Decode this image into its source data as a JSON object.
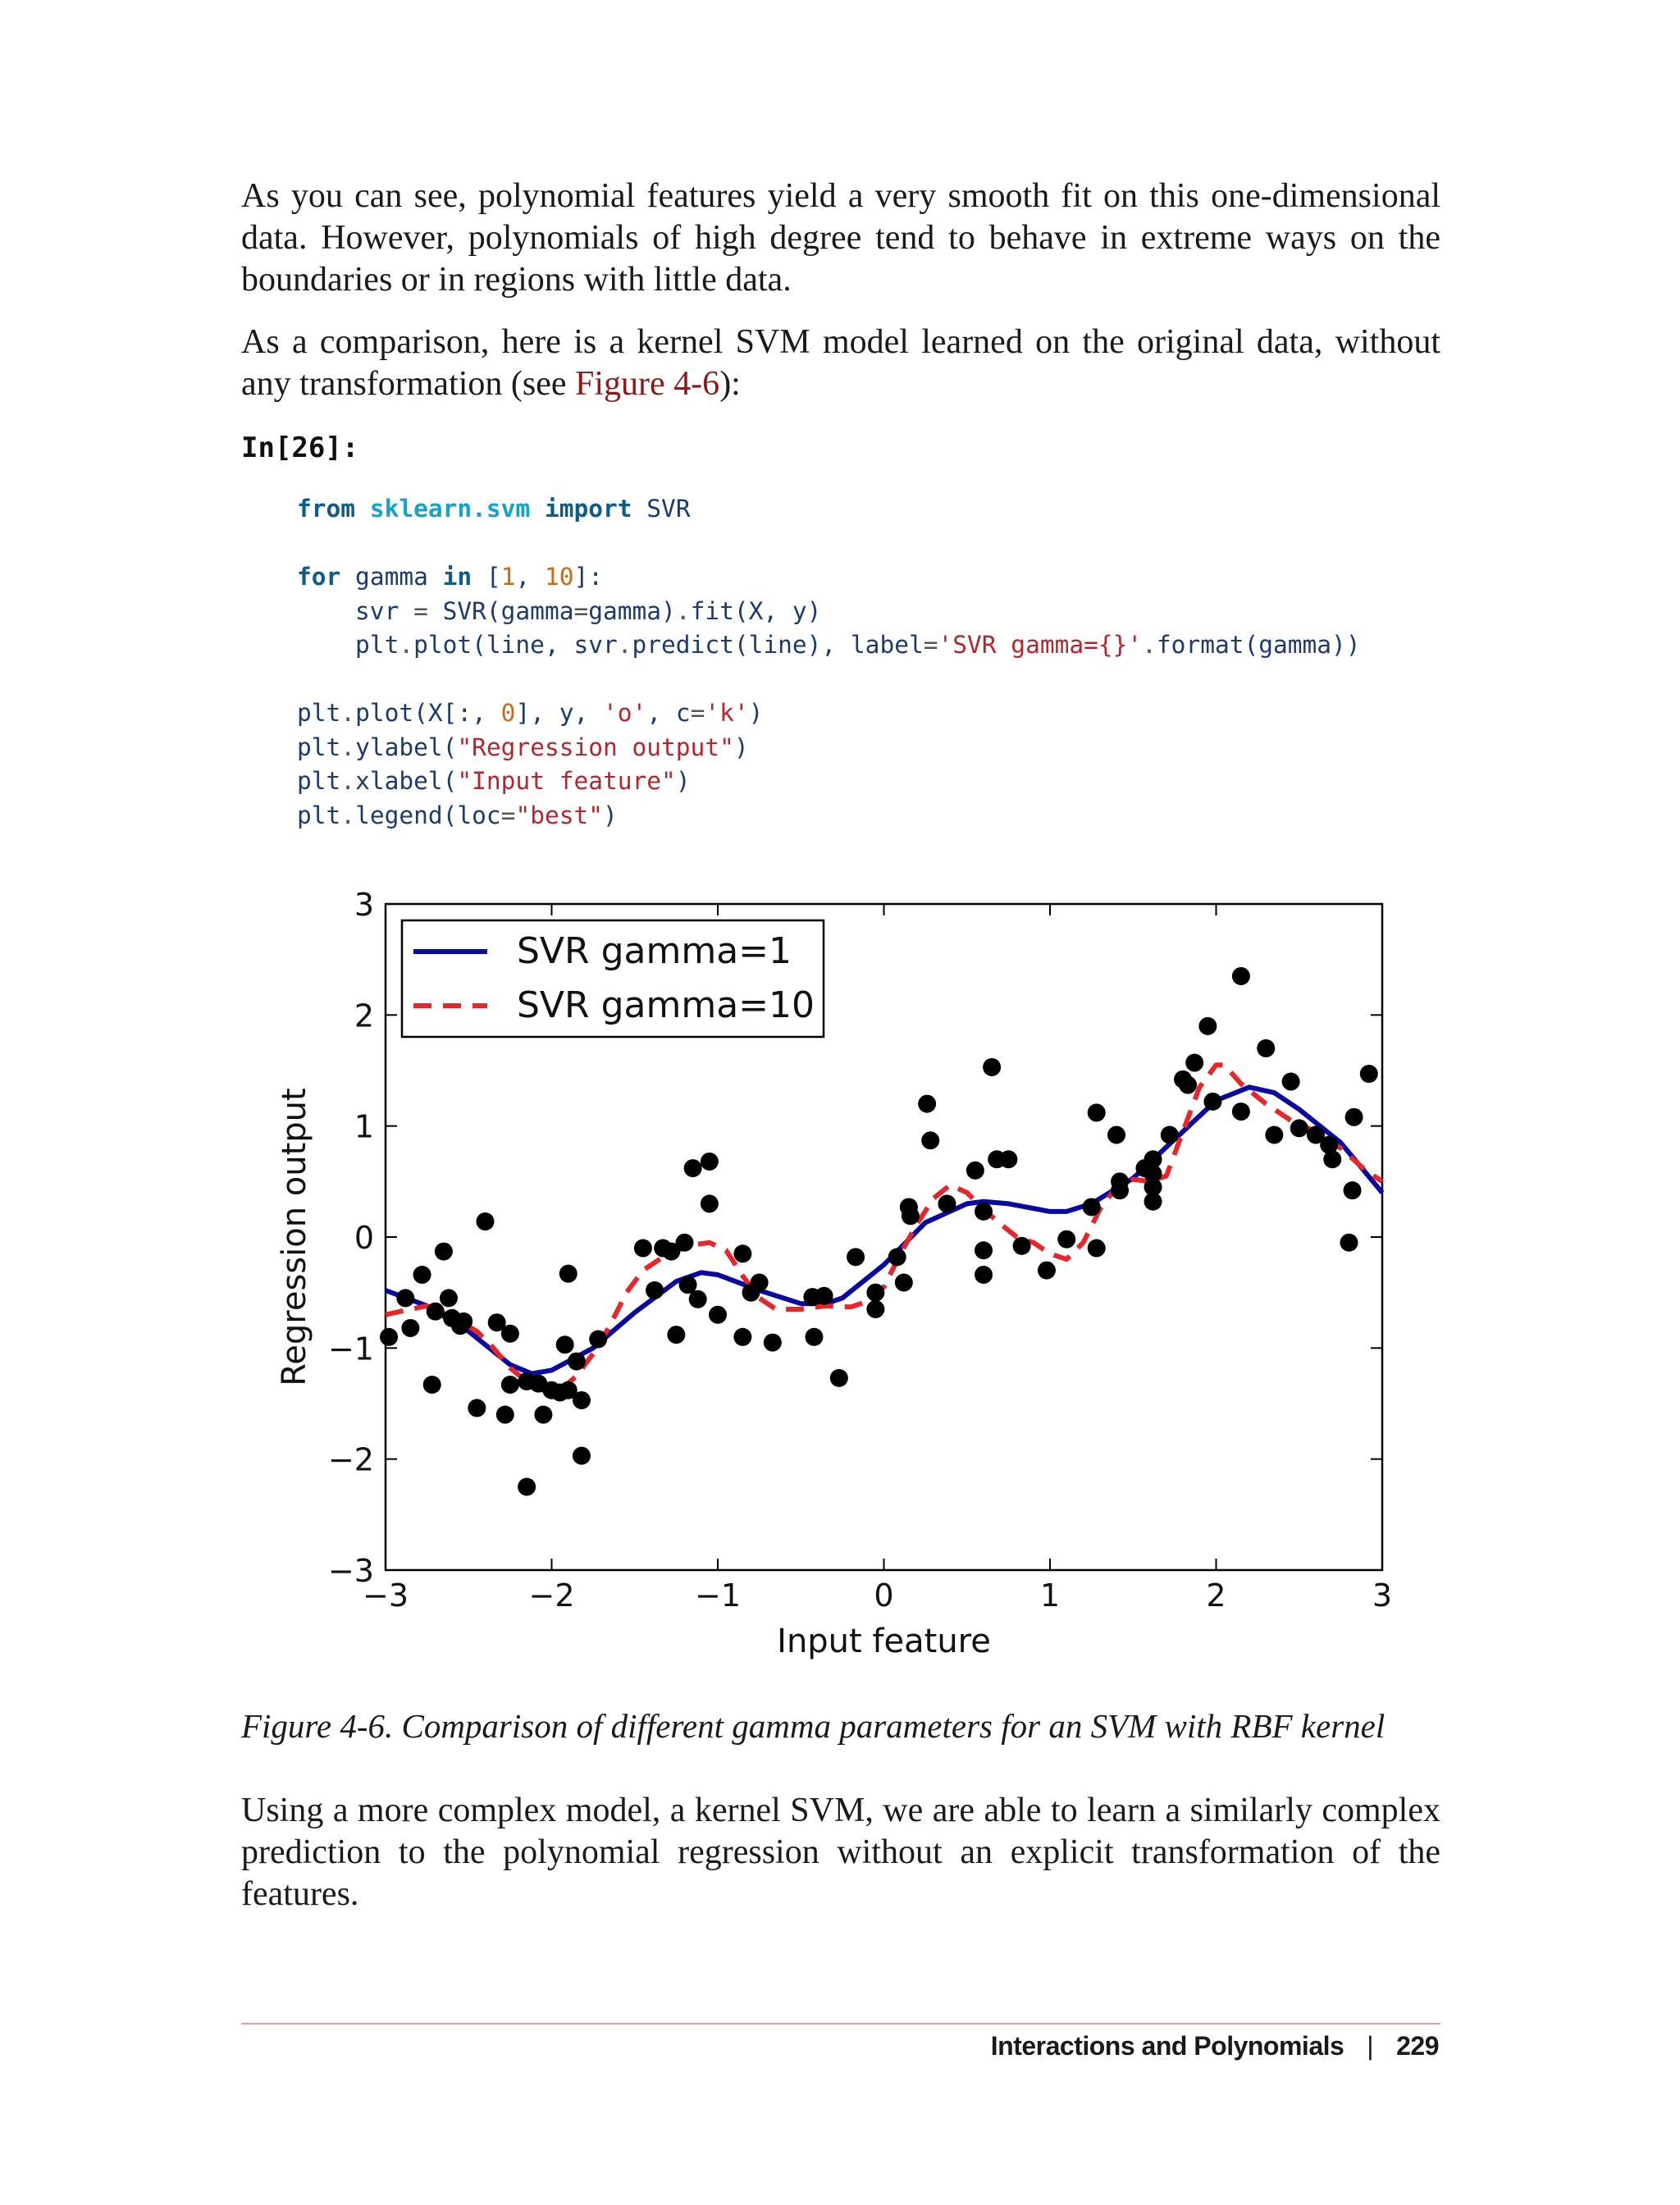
{
  "paragraphs": {
    "p1_main": "As you can see, polynomial features yield a very smooth fit on this one-dimensional data. However, polynomials of high degree tend to behave in extreme ways on the",
    "p1_last": "boundaries or in regions with little data.",
    "p2_main": "As a comparison, here is a kernel SVM model learned on the original data, without",
    "p2_last_prefix": "any transformation (see ",
    "p2_link": "Figure 4-6",
    "p2_last_suffix": "):",
    "p3_main": "Using a more complex model, a kernel SVM, we are able to learn a similarly complex prediction to the polynomial regression without an explicit transformation of the",
    "p3_last": "features."
  },
  "code_cell": {
    "label": "In[26]:",
    "lines": [
      [
        {
          "t": "from",
          "c": "kw"
        },
        {
          "t": " "
        },
        {
          "t": "sklearn.svm",
          "c": "mod"
        },
        {
          "t": " "
        },
        {
          "t": "import",
          "c": "kw"
        },
        {
          "t": " SVR"
        }
      ],
      [],
      [
        {
          "t": "for",
          "c": "kw"
        },
        {
          "t": " gamma "
        },
        {
          "t": "in",
          "c": "kw"
        },
        {
          "t": " ["
        },
        {
          "t": "1",
          "c": "num"
        },
        {
          "t": ", "
        },
        {
          "t": "10",
          "c": "num"
        },
        {
          "t": "]:"
        }
      ],
      [
        {
          "t": "    svr "
        },
        {
          "t": "=",
          "c": "op"
        },
        {
          "t": " SVR(gamma"
        },
        {
          "t": "=",
          "c": "op"
        },
        {
          "t": "gamma)"
        },
        {
          "t": ".",
          "c": "op"
        },
        {
          "t": "fit(X, y)"
        }
      ],
      [
        {
          "t": "    plt"
        },
        {
          "t": ".",
          "c": "op"
        },
        {
          "t": "plot(line, svr"
        },
        {
          "t": ".",
          "c": "op"
        },
        {
          "t": "predict(line), label"
        },
        {
          "t": "=",
          "c": "op"
        },
        {
          "t": "'SVR gamma={}'",
          "c": "str"
        },
        {
          "t": ".",
          "c": "op"
        },
        {
          "t": "format(gamma))"
        }
      ],
      [],
      [
        {
          "t": "plt"
        },
        {
          "t": ".",
          "c": "op"
        },
        {
          "t": "plot(X[:, "
        },
        {
          "t": "0",
          "c": "num"
        },
        {
          "t": "], y, "
        },
        {
          "t": "'o'",
          "c": "str"
        },
        {
          "t": ", c"
        },
        {
          "t": "=",
          "c": "op"
        },
        {
          "t": "'k'",
          "c": "str"
        },
        {
          "t": ")"
        }
      ],
      [
        {
          "t": "plt"
        },
        {
          "t": ".",
          "c": "op"
        },
        {
          "t": "ylabel("
        },
        {
          "t": "\"Regression output\"",
          "c": "str"
        },
        {
          "t": ")"
        }
      ],
      [
        {
          "t": "plt"
        },
        {
          "t": ".",
          "c": "op"
        },
        {
          "t": "xlabel("
        },
        {
          "t": "\"Input feature\"",
          "c": "str"
        },
        {
          "t": ")"
        }
      ],
      [
        {
          "t": "plt"
        },
        {
          "t": ".",
          "c": "op"
        },
        {
          "t": "legend(loc"
        },
        {
          "t": "=",
          "c": "op"
        },
        {
          "t": "\"best\"",
          "c": "str"
        },
        {
          "t": ")"
        }
      ]
    ]
  },
  "chart_data": {
    "type": "line",
    "xlabel": "Input feature",
    "ylabel": "Regression output",
    "xlim": [
      -3,
      3
    ],
    "ylim": [
      -3,
      3
    ],
    "x_ticks": [
      -3,
      -2,
      -1,
      0,
      1,
      2,
      3
    ],
    "y_ticks": [
      -3,
      -2,
      -1,
      0,
      1,
      2,
      3
    ],
    "x_tick_labels": [
      "−3",
      "−2",
      "−1",
      "0",
      "1",
      "2",
      "3"
    ],
    "y_tick_labels": [
      "−3",
      "−2",
      "−1",
      "0",
      "1",
      "2",
      "3"
    ],
    "grid": false,
    "legend_position": "top-left",
    "series": [
      {
        "name": "SVR gamma=1",
        "style": "solid",
        "color": "#0a0aa0",
        "points": [
          [
            -3.0,
            -0.48
          ],
          [
            -2.75,
            -0.62
          ],
          [
            -2.5,
            -0.85
          ],
          [
            -2.25,
            -1.15
          ],
          [
            -2.12,
            -1.23
          ],
          [
            -2.0,
            -1.2
          ],
          [
            -1.75,
            -1.0
          ],
          [
            -1.5,
            -0.68
          ],
          [
            -1.25,
            -0.4
          ],
          [
            -1.1,
            -0.32
          ],
          [
            -1.0,
            -0.34
          ],
          [
            -0.75,
            -0.48
          ],
          [
            -0.5,
            -0.6
          ],
          [
            -0.35,
            -0.6
          ],
          [
            -0.25,
            -0.55
          ],
          [
            0.0,
            -0.25
          ],
          [
            0.25,
            0.13
          ],
          [
            0.5,
            0.3
          ],
          [
            0.6,
            0.32
          ],
          [
            0.75,
            0.3
          ],
          [
            1.0,
            0.23
          ],
          [
            1.1,
            0.23
          ],
          [
            1.25,
            0.3
          ],
          [
            1.5,
            0.53
          ],
          [
            1.75,
            0.88
          ],
          [
            2.0,
            1.23
          ],
          [
            2.2,
            1.35
          ],
          [
            2.35,
            1.3
          ],
          [
            2.5,
            1.15
          ],
          [
            2.75,
            0.85
          ],
          [
            3.0,
            0.4
          ]
        ]
      },
      {
        "name": "SVR gamma=10",
        "style": "dashed",
        "color": "#e8262a",
        "points": [
          [
            -3.0,
            -0.7
          ],
          [
            -2.85,
            -0.65
          ],
          [
            -2.75,
            -0.62
          ],
          [
            -2.6,
            -0.72
          ],
          [
            -2.45,
            -0.85
          ],
          [
            -2.35,
            -1.0
          ],
          [
            -2.25,
            -1.18
          ],
          [
            -2.15,
            -1.3
          ],
          [
            -2.05,
            -1.38
          ],
          [
            -1.95,
            -1.38
          ],
          [
            -1.85,
            -1.25
          ],
          [
            -1.75,
            -1.05
          ],
          [
            -1.65,
            -0.8
          ],
          [
            -1.55,
            -0.5
          ],
          [
            -1.45,
            -0.3
          ],
          [
            -1.3,
            -0.15
          ],
          [
            -1.15,
            -0.07
          ],
          [
            -1.05,
            -0.05
          ],
          [
            -0.95,
            -0.12
          ],
          [
            -0.85,
            -0.35
          ],
          [
            -0.75,
            -0.55
          ],
          [
            -0.65,
            -0.65
          ],
          [
            -0.5,
            -0.65
          ],
          [
            -0.35,
            -0.62
          ],
          [
            -0.2,
            -0.63
          ],
          [
            -0.1,
            -0.58
          ],
          [
            0.0,
            -0.45
          ],
          [
            0.1,
            -0.15
          ],
          [
            0.2,
            0.12
          ],
          [
            0.3,
            0.35
          ],
          [
            0.4,
            0.47
          ],
          [
            0.5,
            0.4
          ],
          [
            0.6,
            0.25
          ],
          [
            0.7,
            0.12
          ],
          [
            0.8,
            0.0
          ],
          [
            0.9,
            -0.05
          ],
          [
            1.0,
            -0.15
          ],
          [
            1.1,
            -0.2
          ],
          [
            1.2,
            -0.05
          ],
          [
            1.3,
            0.25
          ],
          [
            1.4,
            0.45
          ],
          [
            1.5,
            0.52
          ],
          [
            1.6,
            0.5
          ],
          [
            1.7,
            0.55
          ],
          [
            1.8,
            0.95
          ],
          [
            1.9,
            1.35
          ],
          [
            2.0,
            1.55
          ],
          [
            2.05,
            1.55
          ],
          [
            2.15,
            1.38
          ],
          [
            2.3,
            1.2
          ],
          [
            2.45,
            1.05
          ],
          [
            2.6,
            0.95
          ],
          [
            2.75,
            0.8
          ],
          [
            2.9,
            0.6
          ],
          [
            3.0,
            0.5
          ]
        ]
      }
    ],
    "scatter": {
      "color": "#000000",
      "points": [
        [
          -2.98,
          -0.9
        ],
        [
          -2.88,
          -0.55
        ],
        [
          -2.85,
          -0.82
        ],
        [
          -2.78,
          -0.34
        ],
        [
          -2.72,
          -1.33
        ],
        [
          -2.7,
          -0.67
        ],
        [
          -2.65,
          -0.13
        ],
        [
          -2.62,
          -0.55
        ],
        [
          -2.6,
          -0.73
        ],
        [
          -2.55,
          -0.8
        ],
        [
          -2.53,
          -0.76
        ],
        [
          -2.45,
          -1.54
        ],
        [
          -2.4,
          0.14
        ],
        [
          -2.33,
          -0.77
        ],
        [
          -2.28,
          -1.6
        ],
        [
          -2.25,
          -0.87
        ],
        [
          -2.25,
          -1.33
        ],
        [
          -2.15,
          -1.3
        ],
        [
          -2.15,
          -2.25
        ],
        [
          -2.08,
          -1.32
        ],
        [
          -2.05,
          -1.6
        ],
        [
          -2.0,
          -1.38
        ],
        [
          -1.95,
          -1.4
        ],
        [
          -1.92,
          -0.97
        ],
        [
          -1.9,
          -1.38
        ],
        [
          -1.9,
          -0.33
        ],
        [
          -1.85,
          -1.12
        ],
        [
          -1.82,
          -1.47
        ],
        [
          -1.82,
          -1.97
        ],
        [
          -1.72,
          -0.92
        ],
        [
          -1.45,
          -0.1
        ],
        [
          -1.38,
          -0.48
        ],
        [
          -1.33,
          -0.1
        ],
        [
          -1.28,
          -0.13
        ],
        [
          -1.25,
          -0.88
        ],
        [
          -1.2,
          -0.05
        ],
        [
          -1.18,
          -0.43
        ],
        [
          -1.15,
          0.62
        ],
        [
          -1.12,
          -0.56
        ],
        [
          -1.05,
          0.68
        ],
        [
          -1.05,
          0.3
        ],
        [
          -1.0,
          -0.7
        ],
        [
          -0.85,
          -0.15
        ],
        [
          -0.85,
          -0.9
        ],
        [
          -0.8,
          -0.5
        ],
        [
          -0.75,
          -0.41
        ],
        [
          -0.67,
          -0.95
        ],
        [
          -0.43,
          -0.54
        ],
        [
          -0.42,
          -0.9
        ],
        [
          -0.36,
          -0.53
        ],
        [
          -0.27,
          -1.27
        ],
        [
          -0.17,
          -0.18
        ],
        [
          -0.05,
          -0.5
        ],
        [
          -0.05,
          -0.65
        ],
        [
          0.08,
          -0.18
        ],
        [
          0.12,
          -0.41
        ],
        [
          0.15,
          0.27
        ],
        [
          0.16,
          0.19
        ],
        [
          0.26,
          1.2
        ],
        [
          0.28,
          0.87
        ],
        [
          0.38,
          0.3
        ],
        [
          0.55,
          0.6
        ],
        [
          0.6,
          0.23
        ],
        [
          0.6,
          -0.12
        ],
        [
          0.6,
          -0.34
        ],
        [
          0.65,
          1.53
        ],
        [
          0.68,
          0.7
        ],
        [
          0.75,
          0.7
        ],
        [
          0.83,
          -0.08
        ],
        [
          0.98,
          -0.3
        ],
        [
          1.1,
          -0.02
        ],
        [
          1.25,
          0.27
        ],
        [
          1.28,
          -0.1
        ],
        [
          1.28,
          1.12
        ],
        [
          1.4,
          0.92
        ],
        [
          1.42,
          0.42
        ],
        [
          1.42,
          0.5
        ],
        [
          1.57,
          0.62
        ],
        [
          1.62,
          0.45
        ],
        [
          1.62,
          0.32
        ],
        [
          1.62,
          0.57
        ],
        [
          1.62,
          0.7
        ],
        [
          1.72,
          0.92
        ],
        [
          1.8,
          1.42
        ],
        [
          1.83,
          1.37
        ],
        [
          1.87,
          1.57
        ],
        [
          1.95,
          1.9
        ],
        [
          1.98,
          1.22
        ],
        [
          2.15,
          2.35
        ],
        [
          2.15,
          1.13
        ],
        [
          2.3,
          1.7
        ],
        [
          2.35,
          0.92
        ],
        [
          2.45,
          1.4
        ],
        [
          2.5,
          0.98
        ],
        [
          2.6,
          0.92
        ],
        [
          2.68,
          0.83
        ],
        [
          2.7,
          0.7
        ],
        [
          2.8,
          -0.05
        ],
        [
          2.82,
          0.42
        ],
        [
          2.83,
          1.08
        ],
        [
          2.92,
          1.47
        ]
      ]
    }
  },
  "caption": "Figure 4-6. Comparison of different gamma parameters for an SVM with RBF kernel",
  "footer": {
    "title": "Interactions and Polynomials",
    "separator": "|",
    "page_number": "229"
  }
}
